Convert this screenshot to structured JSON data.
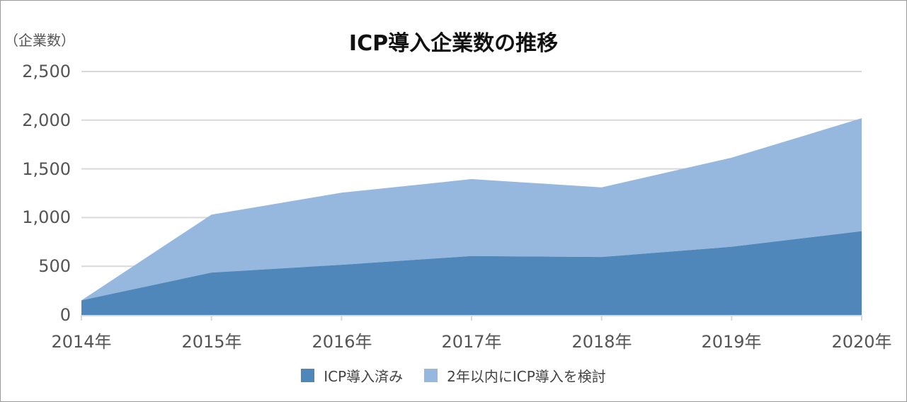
{
  "chart": {
    "title": "ICP導入企業数の推移",
    "unit_label": "（企業数）",
    "y_ticks": [
      "0",
      "500",
      "1,000",
      "1,500",
      "2,000",
      "2,500"
    ],
    "x_ticks": [
      "2014年",
      "2015年",
      "2016年",
      "2017年",
      "2018年",
      "2019年",
      "2020年"
    ],
    "legend": [
      {
        "label": "ICP導入済み",
        "color": "#4f87ba"
      },
      {
        "label": "2年以内にICP導入を検討",
        "color": "#97b8de"
      }
    ],
    "colors": {
      "grid": "#d9d9d9",
      "axis_text": "#555555",
      "title": "#111111"
    }
  },
  "chart_data": {
    "type": "area",
    "stacked": true,
    "title": "ICP導入企業数の推移",
    "xlabel": "",
    "ylabel": "（企業数）",
    "categories": [
      "2014年",
      "2015年",
      "2016年",
      "2017年",
      "2018年",
      "2019年",
      "2020年"
    ],
    "series": [
      {
        "name": "ICP導入済み",
        "values": [
          150,
          435,
          515,
          605,
          595,
          700,
          860
        ],
        "color": "#4f87ba"
      },
      {
        "name": "2年以内にICP導入を検討",
        "values": [
          0,
          595,
          740,
          790,
          715,
          915,
          1160
        ],
        "color": "#97b8de"
      }
    ],
    "ylim": [
      0,
      2500
    ],
    "yticks": [
      0,
      500,
      1000,
      1500,
      2000,
      2500
    ],
    "grid": true,
    "legend_position": "bottom"
  }
}
